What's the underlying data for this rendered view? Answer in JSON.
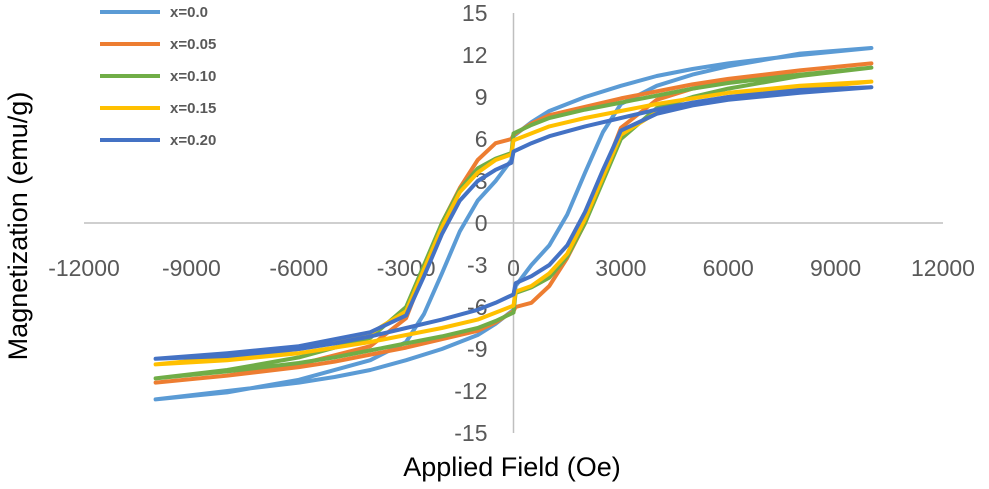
{
  "chart_data": {
    "type": "line",
    "title": "",
    "xlabel": "Applied Field (Oe)",
    "ylabel": "Magnetization (emu/g)",
    "xlim": [
      -12000,
      12000
    ],
    "ylim": [
      -15,
      15
    ],
    "xticks": [
      -12000,
      -9000,
      -6000,
      -3000,
      0,
      3000,
      6000,
      9000,
      12000
    ],
    "yticks": [
      15,
      12,
      9,
      6,
      3,
      0,
      -3,
      -6,
      -9,
      -12,
      -15
    ],
    "grid": false,
    "legend_position": "top-left",
    "series": [
      {
        "name": "x=0.0",
        "color": "#5B9BD5",
        "points": [
          [
            -10000,
            -12.6
          ],
          [
            -8000,
            -12.1
          ],
          [
            -6000,
            -11.2
          ],
          [
            -4000,
            -9.8
          ],
          [
            -3000,
            -8.5
          ],
          [
            -2500,
            -6.5
          ],
          [
            -2000,
            -3.6
          ],
          [
            -1500,
            -0.6
          ],
          [
            -1000,
            1.6
          ],
          [
            -500,
            3.0
          ],
          [
            -60,
            4.5
          ],
          [
            0,
            6.2
          ],
          [
            500,
            7.2
          ],
          [
            1000,
            8.0
          ],
          [
            2000,
            9.0
          ],
          [
            3000,
            9.8
          ],
          [
            4000,
            10.5
          ],
          [
            5000,
            11.0
          ],
          [
            6000,
            11.4
          ],
          [
            8000,
            12.0
          ],
          [
            10000,
            12.5
          ],
          [
            8000,
            12.1
          ],
          [
            6000,
            11.2
          ],
          [
            5000,
            10.6
          ],
          [
            4000,
            9.8
          ],
          [
            3000,
            8.5
          ],
          [
            2500,
            6.5
          ],
          [
            2000,
            3.6
          ],
          [
            1500,
            0.6
          ],
          [
            1000,
            -1.6
          ],
          [
            500,
            -3.0
          ],
          [
            60,
            -4.5
          ],
          [
            0,
            -6.2
          ],
          [
            -500,
            -7.2
          ],
          [
            -1000,
            -8.0
          ],
          [
            -2000,
            -9.0
          ],
          [
            -3000,
            -9.8
          ],
          [
            -4000,
            -10.5
          ],
          [
            -5000,
            -11.0
          ],
          [
            -6000,
            -11.4
          ],
          [
            -8000,
            -12.0
          ],
          [
            -10000,
            -12.6
          ]
        ]
      },
      {
        "name": "x=0.05",
        "color": "#ED7D31",
        "points": [
          [
            -10000,
            -11.4
          ],
          [
            -8000,
            -10.9
          ],
          [
            -6000,
            -10.1
          ],
          [
            -4000,
            -8.8
          ],
          [
            -3000,
            -6.8
          ],
          [
            -2500,
            -3.5
          ],
          [
            -2000,
            0.0
          ],
          [
            -1500,
            2.5
          ],
          [
            -1000,
            4.5
          ],
          [
            -500,
            5.7
          ],
          [
            -60,
            6.0
          ],
          [
            0,
            6.3
          ],
          [
            500,
            7.1
          ],
          [
            1000,
            7.7
          ],
          [
            2000,
            8.3
          ],
          [
            3000,
            8.9
          ],
          [
            4000,
            9.4
          ],
          [
            5000,
            9.9
          ],
          [
            6000,
            10.3
          ],
          [
            8000,
            10.9
          ],
          [
            10000,
            11.4
          ],
          [
            8000,
            10.9
          ],
          [
            6000,
            10.1
          ],
          [
            5000,
            9.6
          ],
          [
            4000,
            8.8
          ],
          [
            3000,
            6.8
          ],
          [
            2500,
            3.5
          ],
          [
            2000,
            0.0
          ],
          [
            1500,
            -2.5
          ],
          [
            1000,
            -4.5
          ],
          [
            500,
            -5.7
          ],
          [
            60,
            -6.0
          ],
          [
            0,
            -6.3
          ],
          [
            -500,
            -7.1
          ],
          [
            -1000,
            -7.7
          ],
          [
            -2000,
            -8.3
          ],
          [
            -3000,
            -8.9
          ],
          [
            -4000,
            -9.4
          ],
          [
            -5000,
            -9.9
          ],
          [
            -6000,
            -10.3
          ],
          [
            -8000,
            -10.9
          ],
          [
            -10000,
            -11.4
          ]
        ]
      },
      {
        "name": "x=0.10",
        "color": "#70AD47",
        "points": [
          [
            -10000,
            -11.1
          ],
          [
            -8000,
            -10.5
          ],
          [
            -6000,
            -9.6
          ],
          [
            -4000,
            -8.2
          ],
          [
            -3000,
            -6.0
          ],
          [
            -2500,
            -3.0
          ],
          [
            -2000,
            0.0
          ],
          [
            -1500,
            2.4
          ],
          [
            -1000,
            3.9
          ],
          [
            -500,
            4.6
          ],
          [
            -60,
            5.0
          ],
          [
            0,
            6.4
          ],
          [
            500,
            7.0
          ],
          [
            1000,
            7.5
          ],
          [
            2000,
            8.1
          ],
          [
            3000,
            8.6
          ],
          [
            4000,
            9.1
          ],
          [
            5000,
            9.6
          ],
          [
            6000,
            10.0
          ],
          [
            8000,
            10.6
          ],
          [
            10000,
            11.1
          ],
          [
            8000,
            10.5
          ],
          [
            6000,
            9.6
          ],
          [
            5000,
            9.0
          ],
          [
            4000,
            8.2
          ],
          [
            3000,
            6.0
          ],
          [
            2500,
            3.0
          ],
          [
            2000,
            0.0
          ],
          [
            1500,
            -2.4
          ],
          [
            1000,
            -3.9
          ],
          [
            500,
            -4.6
          ],
          [
            60,
            -5.0
          ],
          [
            0,
            -6.4
          ],
          [
            -500,
            -7.0
          ],
          [
            -1000,
            -7.5
          ],
          [
            -2000,
            -8.1
          ],
          [
            -3000,
            -8.6
          ],
          [
            -4000,
            -9.1
          ],
          [
            -5000,
            -9.6
          ],
          [
            -6000,
            -10.0
          ],
          [
            -8000,
            -10.6
          ],
          [
            -10000,
            -11.1
          ]
        ]
      },
      {
        "name": "x=0.15",
        "color": "#FFC000",
        "points": [
          [
            -10000,
            -10.1
          ],
          [
            -8000,
            -9.6
          ],
          [
            -6000,
            -9.0
          ],
          [
            -4000,
            -7.9
          ],
          [
            -3000,
            -6.3
          ],
          [
            -2500,
            -3.3
          ],
          [
            -2000,
            -0.3
          ],
          [
            -1500,
            2.2
          ],
          [
            -1000,
            3.6
          ],
          [
            -500,
            4.5
          ],
          [
            -60,
            4.9
          ],
          [
            0,
            5.9
          ],
          [
            500,
            6.4
          ],
          [
            1000,
            6.9
          ],
          [
            2000,
            7.5
          ],
          [
            3000,
            8.0
          ],
          [
            4000,
            8.5
          ],
          [
            5000,
            8.9
          ],
          [
            6000,
            9.3
          ],
          [
            8000,
            9.8
          ],
          [
            10000,
            10.1
          ],
          [
            8000,
            9.6
          ],
          [
            6000,
            9.0
          ],
          [
            5000,
            8.5
          ],
          [
            4000,
            7.9
          ],
          [
            3000,
            6.3
          ],
          [
            2500,
            3.3
          ],
          [
            2000,
            0.3
          ],
          [
            1500,
            -2.2
          ],
          [
            1000,
            -3.6
          ],
          [
            500,
            -4.5
          ],
          [
            60,
            -4.9
          ],
          [
            0,
            -5.9
          ],
          [
            -500,
            -6.4
          ],
          [
            -1000,
            -6.9
          ],
          [
            -2000,
            -7.5
          ],
          [
            -3000,
            -8.0
          ],
          [
            -4000,
            -8.5
          ],
          [
            -5000,
            -8.9
          ],
          [
            -6000,
            -9.3
          ],
          [
            -8000,
            -9.8
          ],
          [
            -10000,
            -10.1
          ]
        ]
      },
      {
        "name": "x=0.20",
        "color": "#4472C4",
        "points": [
          [
            -10000,
            -9.7
          ],
          [
            -8000,
            -9.3
          ],
          [
            -6000,
            -8.8
          ],
          [
            -4000,
            -7.8
          ],
          [
            -3000,
            -6.6
          ],
          [
            -2500,
            -3.8
          ],
          [
            -2000,
            -0.8
          ],
          [
            -1500,
            1.6
          ],
          [
            -1000,
            3.0
          ],
          [
            -500,
            3.8
          ],
          [
            -60,
            4.3
          ],
          [
            0,
            5.1
          ],
          [
            500,
            5.7
          ],
          [
            1000,
            6.2
          ],
          [
            2000,
            6.9
          ],
          [
            3000,
            7.5
          ],
          [
            4000,
            8.1
          ],
          [
            5000,
            8.6
          ],
          [
            6000,
            9.0
          ],
          [
            8000,
            9.5
          ],
          [
            10000,
            9.7
          ],
          [
            8000,
            9.3
          ],
          [
            6000,
            8.8
          ],
          [
            5000,
            8.4
          ],
          [
            4000,
            7.8
          ],
          [
            3000,
            6.6
          ],
          [
            2500,
            3.8
          ],
          [
            2000,
            0.8
          ],
          [
            1500,
            -1.6
          ],
          [
            1000,
            -3.0
          ],
          [
            500,
            -3.8
          ],
          [
            60,
            -4.3
          ],
          [
            0,
            -5.1
          ],
          [
            -500,
            -5.7
          ],
          [
            -1000,
            -6.2
          ],
          [
            -2000,
            -6.9
          ],
          [
            -3000,
            -7.5
          ],
          [
            -4000,
            -8.1
          ],
          [
            -5000,
            -8.6
          ],
          [
            -6000,
            -9.0
          ],
          [
            -8000,
            -9.5
          ],
          [
            -10000,
            -9.7
          ]
        ]
      }
    ]
  }
}
